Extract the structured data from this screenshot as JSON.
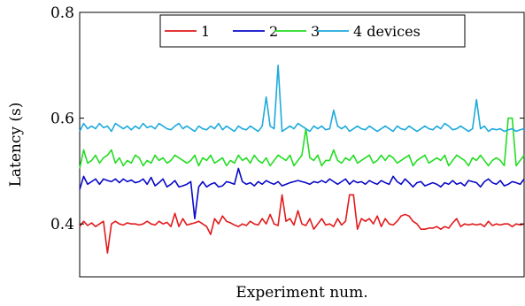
{
  "chart_data": {
    "type": "line",
    "xlabel": "Experiment num.",
    "ylabel": "Latency (s)",
    "ylim": [
      0.3,
      0.8
    ],
    "yticks": [
      0.4,
      0.6,
      0.8
    ],
    "ytick_labels": [
      "0.4",
      "0.6",
      "0.8"
    ],
    "x_tick_labels_shown": false,
    "grid": false,
    "legend_position": "top-right",
    "legend_layout": "horizontal",
    "series": [
      {
        "name": "1",
        "color": "#e31a1c",
        "values": [
          0.395,
          0.405,
          0.397,
          0.402,
          0.395,
          0.4,
          0.405,
          0.345,
          0.4,
          0.405,
          0.4,
          0.398,
          0.402,
          0.4,
          0.4,
          0.398,
          0.4,
          0.405,
          0.4,
          0.398,
          0.405,
          0.4,
          0.403,
          0.395,
          0.42,
          0.395,
          0.41,
          0.398,
          0.4,
          0.402,
          0.405,
          0.4,
          0.395,
          0.38,
          0.41,
          0.4,
          0.415,
          0.405,
          0.402,
          0.398,
          0.395,
          0.4,
          0.397,
          0.405,
          0.4,
          0.398,
          0.41,
          0.4,
          0.418,
          0.4,
          0.397,
          0.455,
          0.405,
          0.41,
          0.398,
          0.425,
          0.4,
          0.397,
          0.41,
          0.39,
          0.4,
          0.41,
          0.398,
          0.4,
          0.395,
          0.41,
          0.398,
          0.405,
          0.455,
          0.455,
          0.39,
          0.41,
          0.405,
          0.41,
          0.4,
          0.415,
          0.395,
          0.41,
          0.4,
          0.398,
          0.405,
          0.415,
          0.418,
          0.415,
          0.405,
          0.4,
          0.39,
          0.39,
          0.392,
          0.392,
          0.395,
          0.39,
          0.395,
          0.392,
          0.402,
          0.41,
          0.395,
          0.4,
          0.398,
          0.4,
          0.398,
          0.4,
          0.395,
          0.405,
          0.397,
          0.4,
          0.398,
          0.4,
          0.4,
          0.395,
          0.4,
          0.398,
          0.4
        ]
      },
      {
        "name": "2",
        "color": "#0a0ac8",
        "values": [
          0.465,
          0.49,
          0.475,
          0.48,
          0.485,
          0.475,
          0.485,
          0.482,
          0.48,
          0.485,
          0.478,
          0.485,
          0.48,
          0.483,
          0.478,
          0.48,
          0.485,
          0.475,
          0.488,
          0.472,
          0.478,
          0.485,
          0.47,
          0.475,
          0.482,
          0.47,
          0.472,
          0.475,
          0.48,
          0.41,
          0.47,
          0.48,
          0.47,
          0.475,
          0.478,
          0.47,
          0.472,
          0.48,
          0.478,
          0.475,
          0.505,
          0.48,
          0.475,
          0.478,
          0.472,
          0.48,
          0.475,
          0.482,
          0.478,
          0.475,
          0.48,
          0.472,
          0.475,
          0.478,
          0.48,
          0.482,
          0.48,
          0.478,
          0.475,
          0.48,
          0.478,
          0.482,
          0.478,
          0.485,
          0.48,
          0.475,
          0.48,
          0.485,
          0.475,
          0.482,
          0.478,
          0.48,
          0.475,
          0.482,
          0.478,
          0.475,
          0.482,
          0.478,
          0.475,
          0.49,
          0.48,
          0.475,
          0.485,
          0.478,
          0.47,
          0.478,
          0.48,
          0.472,
          0.475,
          0.478,
          0.475,
          0.47,
          0.478,
          0.475,
          0.482,
          0.475,
          0.478,
          0.472,
          0.482,
          0.48,
          0.478,
          0.47,
          0.48,
          0.485,
          0.478,
          0.475,
          0.482,
          0.472,
          0.475,
          0.48,
          0.478,
          0.475,
          0.485
        ]
      },
      {
        "name": "3",
        "color": "#22dd22",
        "values": [
          0.505,
          0.54,
          0.515,
          0.52,
          0.53,
          0.515,
          0.525,
          0.53,
          0.54,
          0.515,
          0.525,
          0.51,
          0.52,
          0.515,
          0.53,
          0.525,
          0.51,
          0.52,
          0.515,
          0.53,
          0.52,
          0.525,
          0.515,
          0.52,
          0.53,
          0.525,
          0.52,
          0.515,
          0.52,
          0.53,
          0.51,
          0.525,
          0.52,
          0.53,
          0.515,
          0.52,
          0.525,
          0.51,
          0.52,
          0.515,
          0.53,
          0.52,
          0.525,
          0.515,
          0.53,
          0.52,
          0.515,
          0.525,
          0.51,
          0.52,
          0.53,
          0.525,
          0.52,
          0.53,
          0.51,
          0.52,
          0.53,
          0.58,
          0.525,
          0.52,
          0.53,
          0.51,
          0.52,
          0.52,
          0.54,
          0.52,
          0.515,
          0.525,
          0.52,
          0.53,
          0.515,
          0.52,
          0.525,
          0.53,
          0.515,
          0.52,
          0.53,
          0.52,
          0.53,
          0.525,
          0.515,
          0.52,
          0.525,
          0.53,
          0.51,
          0.52,
          0.525,
          0.53,
          0.515,
          0.52,
          0.525,
          0.52,
          0.53,
          0.51,
          0.52,
          0.53,
          0.525,
          0.52,
          0.51,
          0.525,
          0.52,
          0.53,
          0.52,
          0.51,
          0.52,
          0.525,
          0.52,
          0.51,
          0.6,
          0.6,
          0.51,
          0.52,
          0.53
        ]
      },
      {
        "name": "4 devices",
        "color": "#1eaadd",
        "values": [
          0.575,
          0.59,
          0.58,
          0.585,
          0.58,
          0.59,
          0.582,
          0.585,
          0.575,
          0.59,
          0.585,
          0.58,
          0.585,
          0.578,
          0.585,
          0.58,
          0.59,
          0.582,
          0.585,
          0.58,
          0.59,
          0.585,
          0.58,
          0.578,
          0.585,
          0.59,
          0.58,
          0.585,
          0.58,
          0.575,
          0.585,
          0.58,
          0.578,
          0.585,
          0.58,
          0.59,
          0.578,
          0.585,
          0.58,
          0.575,
          0.585,
          0.58,
          0.578,
          0.585,
          0.58,
          0.575,
          0.585,
          0.64,
          0.585,
          0.58,
          0.7,
          0.575,
          0.58,
          0.585,
          0.58,
          0.59,
          0.585,
          0.58,
          0.575,
          0.585,
          0.58,
          0.585,
          0.578,
          0.58,
          0.615,
          0.585,
          0.58,
          0.585,
          0.575,
          0.58,
          0.585,
          0.58,
          0.578,
          0.585,
          0.58,
          0.575,
          0.58,
          0.585,
          0.58,
          0.575,
          0.585,
          0.58,
          0.578,
          0.585,
          0.58,
          0.575,
          0.58,
          0.585,
          0.58,
          0.578,
          0.585,
          0.58,
          0.59,
          0.585,
          0.578,
          0.58,
          0.585,
          0.58,
          0.575,
          0.58,
          0.635,
          0.58,
          0.585,
          0.575,
          0.58,
          0.578,
          0.58,
          0.575,
          0.578,
          0.58,
          0.575,
          0.578,
          0.58
        ]
      }
    ]
  }
}
